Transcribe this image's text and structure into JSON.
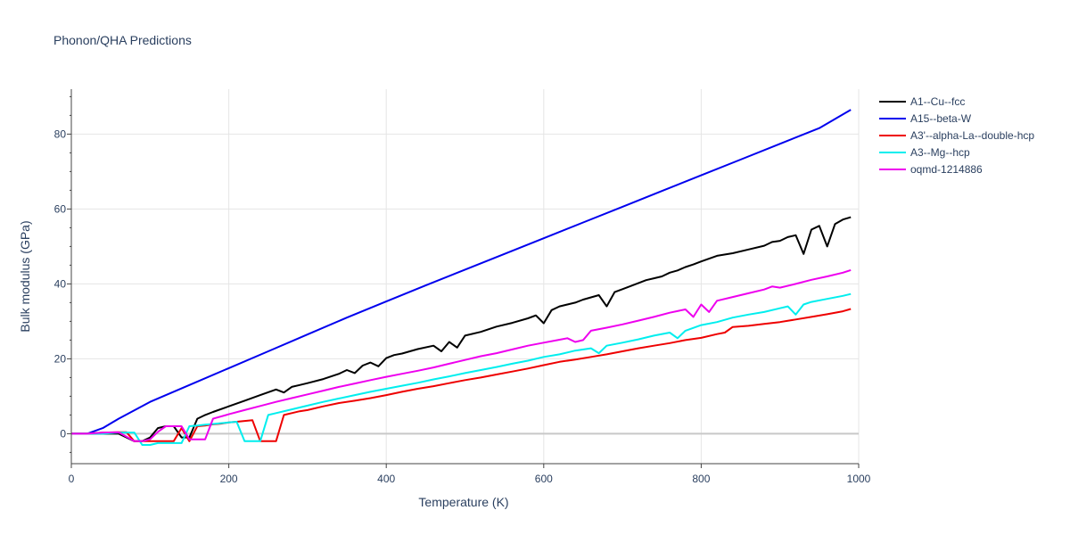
{
  "chart_data": {
    "type": "line",
    "title": "Phonon/QHA Predictions",
    "xlabel": "Temperature (K)",
    "ylabel": "Bulk modulus (GPa)",
    "xlim": [
      0,
      1000
    ],
    "ylim": [
      -8,
      92
    ],
    "xticks": [
      0,
      200,
      400,
      600,
      800,
      1000
    ],
    "yticks": [
      0,
      20,
      40,
      60,
      80
    ],
    "grid": true,
    "legend_position": "top-right",
    "series": [
      {
        "name": "A1--Cu--fcc",
        "color": "#000000",
        "x": [
          0,
          20,
          40,
          60,
          80,
          90,
          100,
          110,
          120,
          130,
          140,
          150,
          160,
          170,
          180,
          200,
          220,
          240,
          260,
          270,
          280,
          290,
          300,
          320,
          340,
          350,
          360,
          370,
          380,
          390,
          400,
          410,
          420,
          440,
          460,
          470,
          480,
          490,
          500,
          520,
          540,
          560,
          580,
          590,
          600,
          610,
          620,
          640,
          650,
          660,
          670,
          680,
          690,
          700,
          720,
          730,
          740,
          750,
          760,
          770,
          780,
          790,
          800,
          820,
          840,
          860,
          880,
          890,
          900,
          910,
          920,
          930,
          940,
          950,
          960,
          970,
          980,
          990
        ],
        "y": [
          0,
          0,
          0,
          0,
          -2,
          -2,
          -1,
          1.5,
          2,
          2,
          -1,
          -1,
          4,
          5,
          5.8,
          7.3,
          8.8,
          10.3,
          11.8,
          11,
          12.5,
          13,
          13.5,
          14.6,
          16,
          17,
          16.2,
          18.2,
          19,
          18,
          20.2,
          21,
          21.4,
          22.6,
          23.5,
          22,
          24.5,
          23,
          26.2,
          27.2,
          28.6,
          29.6,
          30.8,
          31.6,
          29.5,
          33,
          34,
          35,
          35.8,
          36.4,
          37,
          34,
          37.8,
          38.6,
          40.2,
          41,
          41.5,
          42,
          43,
          43.6,
          44.5,
          45.2,
          46,
          47.5,
          48.2,
          49.2,
          50.2,
          51.2,
          51.5,
          52.5,
          53,
          48,
          54.5,
          55.5,
          50,
          56,
          57.2,
          57.8
        ]
      },
      {
        "name": "A15--beta-W",
        "color": "#0000ee",
        "x": [
          0,
          20,
          40,
          60,
          100,
          150,
          200,
          250,
          300,
          350,
          400,
          450,
          500,
          550,
          600,
          650,
          700,
          750,
          800,
          850,
          900,
          950,
          990
        ],
        "y": [
          0,
          0,
          1.5,
          4,
          8.5,
          13,
          17.5,
          22,
          26.5,
          31,
          35.3,
          39.6,
          43.8,
          48,
          52.2,
          56.4,
          60.6,
          64.8,
          69,
          73.2,
          77.4,
          81.6,
          86.5
        ]
      },
      {
        "name": "A3'--alpha-La--double-hcp",
        "color": "#ee0000",
        "x": [
          0,
          20,
          40,
          60,
          70,
          80,
          90,
          100,
          110,
          120,
          130,
          140,
          150,
          160,
          170,
          180,
          190,
          200,
          210,
          220,
          230,
          240,
          250,
          260,
          270,
          280,
          290,
          300,
          320,
          340,
          360,
          380,
          400,
          420,
          440,
          460,
          480,
          500,
          520,
          540,
          560,
          580,
          600,
          620,
          640,
          660,
          680,
          700,
          720,
          740,
          760,
          780,
          800,
          820,
          830,
          840,
          860,
          880,
          900,
          920,
          940,
          960,
          980,
          990
        ],
        "y": [
          0,
          0,
          0.3,
          0.4,
          0.4,
          -2,
          -2,
          -2,
          -2,
          -2,
          -2,
          1.5,
          -2,
          2,
          2.2,
          2.5,
          2.7,
          3,
          3.2,
          3.4,
          3.6,
          -2,
          -2,
          -2,
          5,
          5.5,
          6,
          6.3,
          7.3,
          8.2,
          8.8,
          9.5,
          10.3,
          11.2,
          12,
          12.7,
          13.5,
          14.3,
          15,
          15.8,
          16.6,
          17.4,
          18.3,
          19.2,
          19.8,
          20.5,
          21.2,
          22,
          22.8,
          23.5,
          24.2,
          25,
          25.6,
          26.6,
          27,
          28.5,
          28.8,
          29.3,
          29.8,
          30.5,
          31.2,
          31.9,
          32.7,
          33.3
        ]
      },
      {
        "name": "A3--Mg--hcp",
        "color": "#00eeee",
        "x": [
          0,
          20,
          40,
          60,
          80,
          90,
          100,
          110,
          120,
          130,
          140,
          150,
          160,
          170,
          180,
          190,
          200,
          210,
          220,
          230,
          240,
          250,
          260,
          280,
          300,
          320,
          340,
          360,
          380,
          400,
          420,
          440,
          460,
          480,
          500,
          520,
          540,
          560,
          580,
          600,
          620,
          640,
          660,
          670,
          680,
          700,
          720,
          740,
          760,
          770,
          780,
          800,
          820,
          840,
          860,
          880,
          900,
          910,
          920,
          930,
          940,
          960,
          980,
          990
        ],
        "y": [
          0,
          0,
          0,
          0.3,
          0.3,
          -3,
          -3,
          -2.5,
          -2.5,
          -2.5,
          -2.5,
          2,
          2.2,
          2.4,
          2.6,
          2.8,
          3,
          3.2,
          -2,
          -2,
          -2,
          5,
          5.5,
          6.5,
          7.5,
          8.5,
          9.4,
          10.3,
          11.2,
          12,
          12.8,
          13.6,
          14.5,
          15.3,
          16.2,
          17,
          17.8,
          18.7,
          19.5,
          20.5,
          21.2,
          22.2,
          22.8,
          21.5,
          23.5,
          24.3,
          25.2,
          26.2,
          27,
          25.5,
          27.5,
          29,
          29.8,
          31,
          31.8,
          32.5,
          33.5,
          34,
          31.8,
          34.5,
          35.2,
          36,
          36.8,
          37.3
        ]
      },
      {
        "name": "oqmd-1214886",
        "color": "#ee00ee",
        "x": [
          0,
          20,
          40,
          60,
          80,
          90,
          100,
          110,
          120,
          130,
          140,
          150,
          160,
          170,
          180,
          200,
          220,
          240,
          260,
          280,
          300,
          320,
          340,
          360,
          380,
          400,
          420,
          440,
          460,
          480,
          500,
          520,
          540,
          560,
          580,
          600,
          620,
          630,
          640,
          650,
          660,
          680,
          700,
          720,
          740,
          760,
          780,
          790,
          800,
          810,
          820,
          840,
          860,
          880,
          890,
          900,
          920,
          940,
          960,
          980,
          990
        ],
        "y": [
          0,
          0,
          0.3,
          0.4,
          -2,
          -2,
          -1.5,
          0.5,
          2,
          2,
          2,
          -1.5,
          -1.5,
          -1.5,
          4,
          5.2,
          6.3,
          7.4,
          8.5,
          9.5,
          10.5,
          11.5,
          12.5,
          13.4,
          14.3,
          15.2,
          16,
          16.8,
          17.7,
          18.7,
          19.7,
          20.7,
          21.5,
          22.5,
          23.5,
          24.3,
          25.1,
          25.5,
          24.5,
          25,
          27.5,
          28.3,
          29.2,
          30.2,
          31.2,
          32.3,
          33.2,
          31.2,
          34.5,
          32.5,
          35.5,
          36.5,
          37.5,
          38.5,
          39.3,
          39,
          40,
          41.1,
          42,
          43,
          43.7
        ]
      }
    ]
  }
}
